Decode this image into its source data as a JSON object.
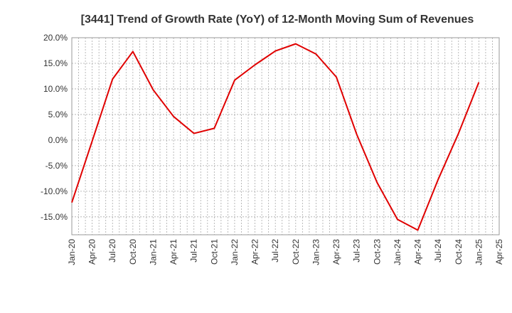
{
  "chart_data": {
    "type": "line",
    "title": "[3441]  Trend of Growth Rate (YoY) of 12-Month Moving Sum of Revenues",
    "xlabel": "",
    "ylabel": "",
    "x_tick_labels": [
      "Jan-20",
      "Apr-20",
      "Jul-20",
      "Oct-20",
      "Jan-21",
      "Apr-21",
      "Jul-21",
      "Oct-21",
      "Jan-22",
      "Apr-22",
      "Jul-22",
      "Oct-22",
      "Jan-23",
      "Apr-23",
      "Jul-23",
      "Oct-23",
      "Jan-24",
      "Apr-24",
      "Jul-24",
      "Oct-24",
      "Jan-25",
      "Apr-25"
    ],
    "y_tick_labels": [
      "20.0%",
      "15.0%",
      "10.0%",
      "5.0%",
      "0.0%",
      "-5.0%",
      "-10.0%",
      "-15.0%"
    ],
    "y_ticks": [
      20,
      15,
      10,
      5,
      0,
      -5,
      -10,
      -15
    ],
    "ylim": [
      -18.5,
      20
    ],
    "unit": "%",
    "grid": true,
    "series": [
      {
        "color": "#e00000",
        "x": [
          "Jan-20",
          "Apr-20",
          "Jul-20",
          "Oct-20",
          "Jan-21",
          "Apr-21",
          "Jul-21",
          "Oct-21",
          "Jan-22",
          "Apr-22",
          "Jul-22",
          "Oct-22",
          "Jan-23",
          "Apr-23",
          "Jul-23",
          "Oct-23",
          "Jan-24",
          "Apr-24",
          "Jul-24",
          "Oct-24",
          "Jan-25"
        ],
        "values": [
          -12.2,
          -0.2,
          11.9,
          17.3,
          9.8,
          4.6,
          1.3,
          2.3,
          11.7,
          14.7,
          17.4,
          18.8,
          16.8,
          12.3,
          1.1,
          -8.3,
          -15.5,
          -17.6,
          -7.7,
          1.3,
          11.3
        ]
      }
    ]
  }
}
